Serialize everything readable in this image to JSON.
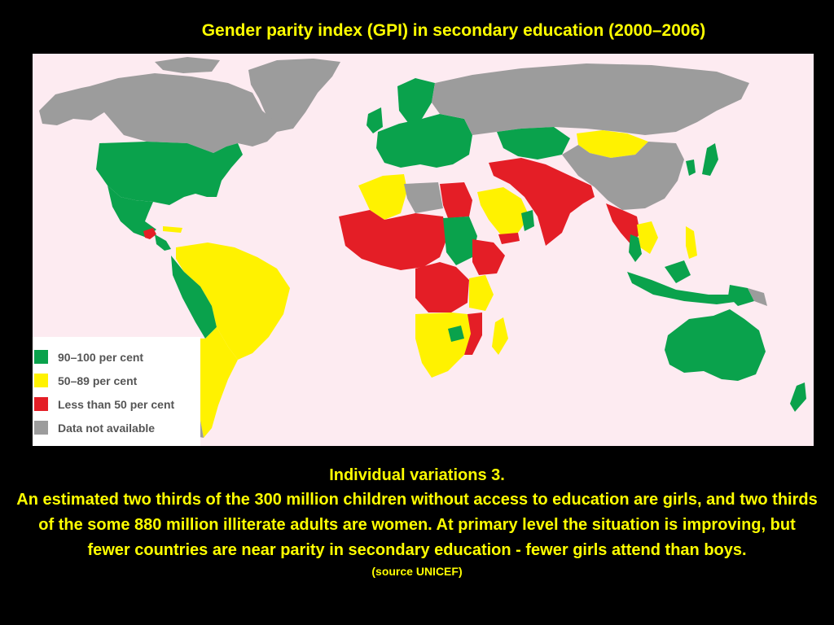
{
  "slide": {
    "title": "Gender parity index (GPI) in secondary education (2000–2006)"
  },
  "map": {
    "colors": {
      "ocean": "#fdebf1",
      "green": "#0aa24c",
      "yellow": "#fff200",
      "red": "#e41e26",
      "gray": "#9c9c9c"
    },
    "legend": [
      {
        "label": "90–100 per cent",
        "color": "#0aa24c"
      },
      {
        "label": "50–89 per cent",
        "color": "#fff200"
      },
      {
        "label": "Less than 50 per cent",
        "color": "#e41e26"
      },
      {
        "label": "Data not available",
        "color": "#9c9c9c"
      }
    ]
  },
  "caption": {
    "heading": "Individual variations 3.",
    "body": "An estimated two thirds of the 300 million children without access to education are girls, and two thirds of the some 880 million illiterate adults are women.  At primary level the situation is improving, but  fewer countries are near parity in secondary education - fewer girls attend than boys.",
    "source": "(source UNICEF)"
  }
}
